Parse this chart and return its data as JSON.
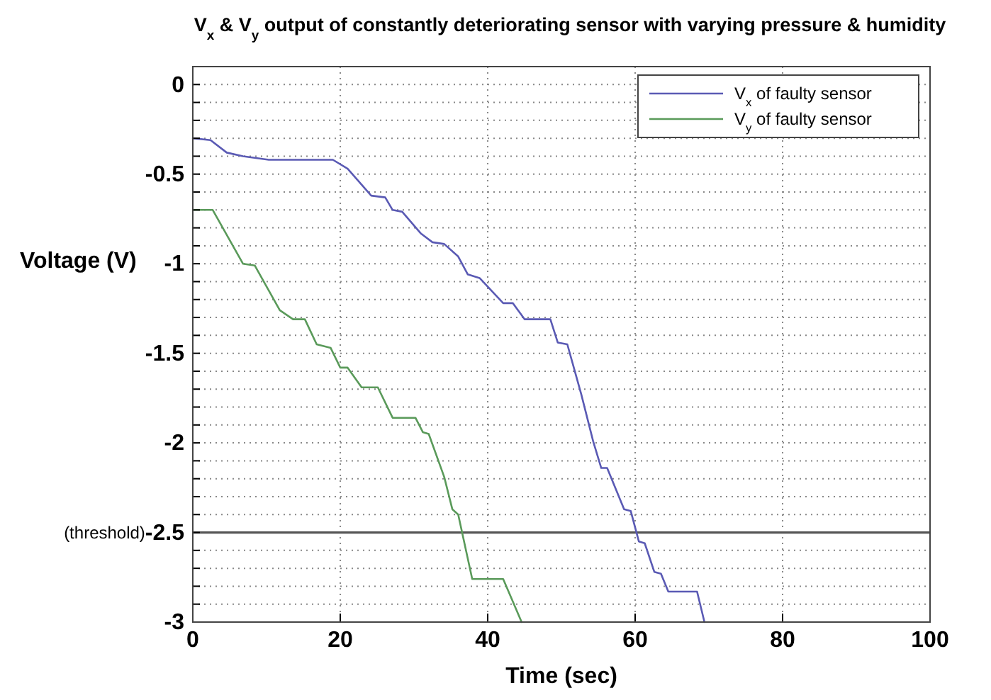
{
  "chart_data": {
    "type": "line",
    "title": "V$_{x}$ & V$_{y}$ output of constantly deteriorating sensor with varying pressure & humidity",
    "xlabel": "Time (sec)",
    "ylabel": "Voltage (V)",
    "xlim": [
      0,
      100
    ],
    "xticks": [
      0,
      20,
      40,
      60,
      80,
      100
    ],
    "ylim": [
      -3,
      0.1
    ],
    "yticks": [
      {
        "value": 0,
        "label": "0"
      },
      {
        "value": -0.1,
        "label": null
      },
      {
        "value": -0.2,
        "label": null
      },
      {
        "value": -0.3,
        "label": null
      },
      {
        "value": -0.4,
        "label": null
      },
      {
        "value": -0.5,
        "label": "-0.5"
      },
      {
        "value": -0.6,
        "label": null
      },
      {
        "value": -0.7,
        "label": null
      },
      {
        "value": -0.8,
        "label": null
      },
      {
        "value": -0.9,
        "label": null
      },
      {
        "value": -1,
        "label": "-1"
      },
      {
        "value": -1.1,
        "label": null
      },
      {
        "value": -1.2,
        "label": null
      },
      {
        "value": -1.3,
        "label": null
      },
      {
        "value": -1.4,
        "label": null
      },
      {
        "value": -1.5,
        "label": "-1.5"
      },
      {
        "value": -1.6,
        "label": null
      },
      {
        "value": -1.7,
        "label": null
      },
      {
        "value": -1.8,
        "label": null
      },
      {
        "value": -1.9,
        "label": null
      },
      {
        "value": -2,
        "label": "-2"
      },
      {
        "value": -2.1,
        "label": null
      },
      {
        "value": -2.2,
        "label": null
      },
      {
        "value": -2.3,
        "label": null
      },
      {
        "value": -2.4,
        "label": null
      },
      {
        "value": -2.5,
        "label": "-2.5"
      },
      {
        "value": -2.6,
        "label": null
      },
      {
        "value": -2.7,
        "label": null
      },
      {
        "value": -2.8,
        "label": null
      },
      {
        "value": -2.9,
        "label": null
      },
      {
        "value": -3,
        "label": "-3"
      }
    ],
    "grid": true,
    "legend": "top right",
    "line_style": "solid",
    "ref_lines": [
      {
        "axis": "y",
        "value": -2.5,
        "label": "(threshold)",
        "color": "#555555"
      }
    ],
    "series": [
      {
        "name": "V$_{x}$ of faulty sensor",
        "color": "#5a5ab4",
        "x": [
          0,
          2.4,
          4.6,
          6.8,
          10.3,
          19,
          21,
          24.2,
          26.1,
          27.1,
          28.4,
          30.9,
          32.5,
          34.1,
          36,
          37.3,
          38.9,
          40.5,
          42.1,
          43.4,
          45,
          48.5,
          49.5,
          50.8,
          52.7,
          54.3,
          55.4,
          56.2,
          58.5,
          59.4,
          60.5,
          61.3,
          62.6,
          63.5,
          64.5,
          68.4,
          69.4
        ],
        "values": [
          -0.3,
          -0.31,
          -0.38,
          -0.4,
          -0.42,
          -0.42,
          -0.47,
          -0.62,
          -0.63,
          -0.7,
          -0.71,
          -0.83,
          -0.88,
          -0.89,
          -0.96,
          -1.06,
          -1.08,
          -1.15,
          -1.22,
          -1.22,
          -1.31,
          -1.31,
          -1.44,
          -1.45,
          -1.73,
          -1.99,
          -2.14,
          -2.14,
          -2.37,
          -2.38,
          -2.55,
          -2.56,
          -2.72,
          -2.73,
          -2.83,
          -2.83,
          -3
        ]
      },
      {
        "name": "V$_{y}$ of faulty sensor",
        "color": "#5a9a5a",
        "x": [
          0,
          2.7,
          6.8,
          8.4,
          11.8,
          13.6,
          15.2,
          16.8,
          18.7,
          20,
          21,
          22.9,
          25.1,
          27.1,
          30.2,
          31.2,
          32,
          34.1,
          35.2,
          36,
          37.9,
          42.1,
          44.6
        ],
        "values": [
          -0.7,
          -0.7,
          -1,
          -1.01,
          -1.26,
          -1.31,
          -1.31,
          -1.45,
          -1.47,
          -1.58,
          -1.58,
          -1.69,
          -1.69,
          -1.86,
          -1.86,
          -1.94,
          -1.95,
          -2.19,
          -2.37,
          -2.4,
          -2.76,
          -2.76,
          -3
        ]
      }
    ]
  }
}
